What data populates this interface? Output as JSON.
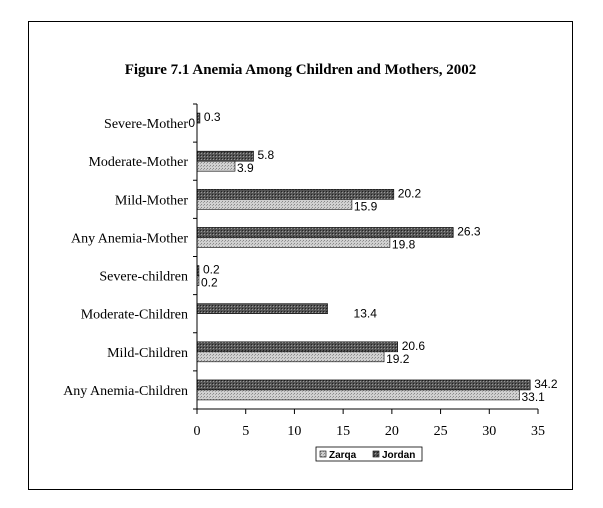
{
  "chart_data": {
    "type": "bar",
    "orientation": "horizontal",
    "title": "Figure 7.1 Anemia Among Children and Mothers, 2002",
    "xlabel": "",
    "ylabel": "",
    "categories": [
      "Severe-Mother",
      "Moderate-Mother",
      "Mild-Mother",
      "Any Anemia-Mother",
      "Severe-children",
      "Moderate-Children",
      "Mild-Children",
      "Any Anemia-Children"
    ],
    "series": [
      {
        "name": "Jordan",
        "values": [
          0.3,
          5.8,
          20.2,
          26.3,
          0.2,
          13.4,
          20.6,
          34.2
        ],
        "labels": [
          "0.3",
          "5.8",
          "20.2",
          "26.3",
          "0.2",
          "13.4",
          "20.6",
          "34.2"
        ]
      },
      {
        "name": "Zarqa",
        "values": [
          0,
          3.9,
          15.9,
          19.8,
          0.2,
          null,
          19.2,
          33.1
        ],
        "labels": [
          "0",
          "3.9",
          "15.9",
          "19.8",
          "0.2",
          "",
          "19.2",
          "33.1"
        ]
      }
    ],
    "xlim": [
      0,
      35
    ],
    "xticks": [
      "0",
      "5",
      "10",
      "15",
      "20",
      "25",
      "30",
      "35"
    ],
    "grid": false,
    "legend": {
      "placement": "bottom",
      "entries": [
        "Zarqa",
        "Jordan"
      ]
    },
    "colors": {
      "Jordan": "#444444",
      "Zarqa": "#c8c8c8"
    }
  }
}
